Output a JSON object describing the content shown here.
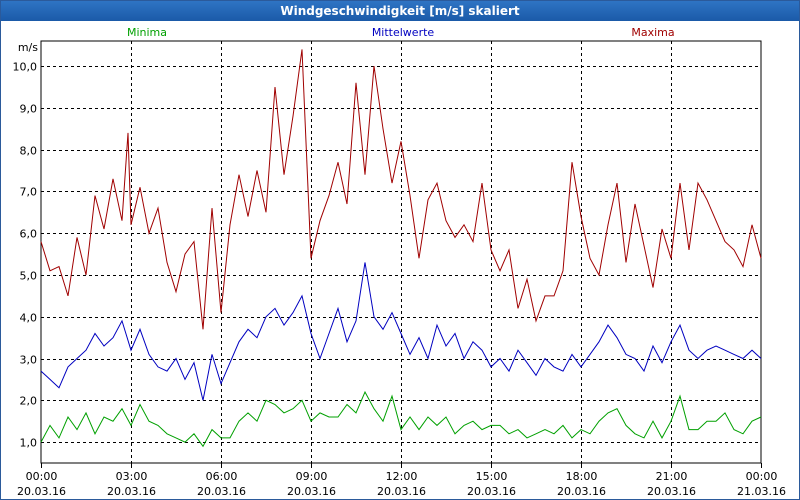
{
  "window": {
    "title": "Windgeschwindigkeit [m/s] skaliert"
  },
  "colors": {
    "frame": "#2b5a9b",
    "title_bg": "#1f5fae",
    "grid": "#000000",
    "min": "#00a000",
    "mean": "#0000c0",
    "max": "#a00000"
  },
  "chart_data": {
    "type": "line",
    "title": "Windgeschwindigkeit [m/s] skaliert",
    "ylabel": "m/s",
    "ylim": [
      0.5,
      10.6
    ],
    "yticks": [
      1.0,
      2.0,
      3.0,
      4.0,
      5.0,
      6.0,
      7.0,
      8.0,
      9.0,
      10.0
    ],
    "ytick_labels": [
      "1,0",
      "2,0",
      "3,0",
      "4,0",
      "5,0",
      "6,0",
      "7,0",
      "8,0",
      "9,0",
      "10,0"
    ],
    "xlim": [
      0,
      24
    ],
    "xticks": [
      0,
      3,
      6,
      9,
      12,
      15,
      18,
      21,
      24
    ],
    "xtick_labels": [
      [
        "00:00",
        "20.03.16"
      ],
      [
        "03:00",
        "20.03.16"
      ],
      [
        "06:00",
        "20.03.16"
      ],
      [
        "09:00",
        "20.03.16"
      ],
      [
        "12:00",
        "20.03.16"
      ],
      [
        "15:00",
        "20.03.16"
      ],
      [
        "18:00",
        "20.03.16"
      ],
      [
        "21:00",
        "20.03.16"
      ],
      [
        "00:00",
        "21.03.16"
      ]
    ],
    "grid": true,
    "legend_position": "top",
    "series": [
      {
        "name": "Minima",
        "color": "#00a000",
        "points": [
          [
            0.0,
            1.0
          ],
          [
            0.3,
            1.4
          ],
          [
            0.6,
            1.1
          ],
          [
            0.9,
            1.6
          ],
          [
            1.2,
            1.3
          ],
          [
            1.5,
            1.7
          ],
          [
            1.8,
            1.2
          ],
          [
            2.1,
            1.6
          ],
          [
            2.4,
            1.5
          ],
          [
            2.7,
            1.8
          ],
          [
            3.0,
            1.4
          ],
          [
            3.3,
            1.9
          ],
          [
            3.6,
            1.5
          ],
          [
            3.9,
            1.4
          ],
          [
            4.2,
            1.2
          ],
          [
            4.5,
            1.1
          ],
          [
            4.8,
            1.0
          ],
          [
            5.1,
            1.2
          ],
          [
            5.4,
            0.9
          ],
          [
            5.7,
            1.3
          ],
          [
            6.0,
            1.1
          ],
          [
            6.3,
            1.1
          ],
          [
            6.6,
            1.5
          ],
          [
            6.9,
            1.7
          ],
          [
            7.2,
            1.5
          ],
          [
            7.5,
            2.0
          ],
          [
            7.8,
            1.9
          ],
          [
            8.1,
            1.7
          ],
          [
            8.4,
            1.8
          ],
          [
            8.7,
            2.0
          ],
          [
            9.0,
            1.5
          ],
          [
            9.3,
            1.7
          ],
          [
            9.6,
            1.6
          ],
          [
            9.9,
            1.6
          ],
          [
            10.2,
            1.9
          ],
          [
            10.5,
            1.7
          ],
          [
            10.8,
            2.2
          ],
          [
            11.1,
            1.8
          ],
          [
            11.4,
            1.5
          ],
          [
            11.7,
            2.1
          ],
          [
            12.0,
            1.3
          ],
          [
            12.3,
            1.6
          ],
          [
            12.6,
            1.3
          ],
          [
            12.9,
            1.6
          ],
          [
            13.2,
            1.4
          ],
          [
            13.5,
            1.6
          ],
          [
            13.8,
            1.2
          ],
          [
            14.1,
            1.4
          ],
          [
            14.4,
            1.5
          ],
          [
            14.7,
            1.3
          ],
          [
            15.0,
            1.4
          ],
          [
            15.3,
            1.4
          ],
          [
            15.6,
            1.2
          ],
          [
            15.9,
            1.3
          ],
          [
            16.2,
            1.1
          ],
          [
            16.5,
            1.2
          ],
          [
            16.8,
            1.3
          ],
          [
            17.1,
            1.2
          ],
          [
            17.4,
            1.4
          ],
          [
            17.7,
            1.1
          ],
          [
            18.0,
            1.3
          ],
          [
            18.3,
            1.2
          ],
          [
            18.6,
            1.5
          ],
          [
            18.9,
            1.7
          ],
          [
            19.2,
            1.8
          ],
          [
            19.5,
            1.4
          ],
          [
            19.8,
            1.2
          ],
          [
            20.1,
            1.1
          ],
          [
            20.4,
            1.5
          ],
          [
            20.7,
            1.1
          ],
          [
            21.0,
            1.5
          ],
          [
            21.3,
            2.1
          ],
          [
            21.6,
            1.3
          ],
          [
            21.9,
            1.3
          ],
          [
            22.2,
            1.5
          ],
          [
            22.5,
            1.5
          ],
          [
            22.8,
            1.7
          ],
          [
            23.1,
            1.3
          ],
          [
            23.4,
            1.2
          ],
          [
            23.7,
            1.5
          ],
          [
            24.0,
            1.6
          ]
        ]
      },
      {
        "name": "Mittelwerte",
        "color": "#0000c0",
        "points": [
          [
            0.0,
            2.7
          ],
          [
            0.3,
            2.5
          ],
          [
            0.6,
            2.3
          ],
          [
            0.9,
            2.8
          ],
          [
            1.2,
            3.0
          ],
          [
            1.5,
            3.2
          ],
          [
            1.8,
            3.6
          ],
          [
            2.1,
            3.3
          ],
          [
            2.4,
            3.5
          ],
          [
            2.7,
            3.9
          ],
          [
            3.0,
            3.2
          ],
          [
            3.3,
            3.7
          ],
          [
            3.6,
            3.1
          ],
          [
            3.9,
            2.8
          ],
          [
            4.2,
            2.7
          ],
          [
            4.5,
            3.0
          ],
          [
            4.8,
            2.5
          ],
          [
            5.1,
            2.9
          ],
          [
            5.4,
            2.0
          ],
          [
            5.7,
            3.1
          ],
          [
            6.0,
            2.4
          ],
          [
            6.3,
            2.9
          ],
          [
            6.6,
            3.4
          ],
          [
            6.9,
            3.7
          ],
          [
            7.2,
            3.5
          ],
          [
            7.5,
            4.0
          ],
          [
            7.8,
            4.2
          ],
          [
            8.1,
            3.8
          ],
          [
            8.4,
            4.1
          ],
          [
            8.7,
            4.5
          ],
          [
            9.0,
            3.6
          ],
          [
            9.3,
            3.0
          ],
          [
            9.6,
            3.6
          ],
          [
            9.9,
            4.2
          ],
          [
            10.2,
            3.4
          ],
          [
            10.5,
            3.9
          ],
          [
            10.8,
            5.3
          ],
          [
            11.1,
            4.0
          ],
          [
            11.4,
            3.7
          ],
          [
            11.7,
            4.1
          ],
          [
            12.0,
            3.6
          ],
          [
            12.3,
            3.1
          ],
          [
            12.6,
            3.5
          ],
          [
            12.9,
            3.0
          ],
          [
            13.2,
            3.8
          ],
          [
            13.5,
            3.3
          ],
          [
            13.8,
            3.6
          ],
          [
            14.1,
            3.0
          ],
          [
            14.4,
            3.4
          ],
          [
            14.7,
            3.2
          ],
          [
            15.0,
            2.8
          ],
          [
            15.3,
            3.0
          ],
          [
            15.6,
            2.7
          ],
          [
            15.9,
            3.2
          ],
          [
            16.2,
            2.9
          ],
          [
            16.5,
            2.6
          ],
          [
            16.8,
            3.0
          ],
          [
            17.1,
            2.8
          ],
          [
            17.4,
            2.7
          ],
          [
            17.7,
            3.1
          ],
          [
            18.0,
            2.8
          ],
          [
            18.3,
            3.1
          ],
          [
            18.6,
            3.4
          ],
          [
            18.9,
            3.8
          ],
          [
            19.2,
            3.5
          ],
          [
            19.5,
            3.1
          ],
          [
            19.8,
            3.0
          ],
          [
            20.1,
            2.7
          ],
          [
            20.4,
            3.3
          ],
          [
            20.7,
            2.9
          ],
          [
            21.0,
            3.4
          ],
          [
            21.3,
            3.8
          ],
          [
            21.6,
            3.2
          ],
          [
            21.9,
            3.0
          ],
          [
            22.2,
            3.2
          ],
          [
            22.5,
            3.3
          ],
          [
            22.8,
            3.2
          ],
          [
            23.1,
            3.1
          ],
          [
            23.4,
            3.0
          ],
          [
            23.7,
            3.2
          ],
          [
            24.0,
            3.0
          ]
        ]
      },
      {
        "name": "Maxima",
        "color": "#a00000",
        "points": [
          [
            0.0,
            5.8
          ],
          [
            0.3,
            5.1
          ],
          [
            0.6,
            5.2
          ],
          [
            0.9,
            4.5
          ],
          [
            1.2,
            5.9
          ],
          [
            1.5,
            5.0
          ],
          [
            1.8,
            6.9
          ],
          [
            2.1,
            6.1
          ],
          [
            2.4,
            7.3
          ],
          [
            2.7,
            6.3
          ],
          [
            2.9,
            8.4
          ],
          [
            3.0,
            6.2
          ],
          [
            3.3,
            7.1
          ],
          [
            3.6,
            6.0
          ],
          [
            3.9,
            6.6
          ],
          [
            4.2,
            5.3
          ],
          [
            4.5,
            4.6
          ],
          [
            4.8,
            5.5
          ],
          [
            5.1,
            5.8
          ],
          [
            5.4,
            3.7
          ],
          [
            5.7,
            6.6
          ],
          [
            6.0,
            4.1
          ],
          [
            6.3,
            6.2
          ],
          [
            6.6,
            7.4
          ],
          [
            6.9,
            6.4
          ],
          [
            7.2,
            7.5
          ],
          [
            7.5,
            6.5
          ],
          [
            7.8,
            9.5
          ],
          [
            8.1,
            7.4
          ],
          [
            8.4,
            8.8
          ],
          [
            8.7,
            10.4
          ],
          [
            9.0,
            5.4
          ],
          [
            9.3,
            6.3
          ],
          [
            9.6,
            6.9
          ],
          [
            9.9,
            7.7
          ],
          [
            10.2,
            6.7
          ],
          [
            10.5,
            9.6
          ],
          [
            10.8,
            7.4
          ],
          [
            11.1,
            10.0
          ],
          [
            11.4,
            8.5
          ],
          [
            11.7,
            7.2
          ],
          [
            12.0,
            8.2
          ],
          [
            12.3,
            6.9
          ],
          [
            12.6,
            5.4
          ],
          [
            12.9,
            6.8
          ],
          [
            13.2,
            7.2
          ],
          [
            13.5,
            6.3
          ],
          [
            13.8,
            5.9
          ],
          [
            14.1,
            6.2
          ],
          [
            14.4,
            5.8
          ],
          [
            14.7,
            7.2
          ],
          [
            15.0,
            5.6
          ],
          [
            15.3,
            5.1
          ],
          [
            15.6,
            5.6
          ],
          [
            15.9,
            4.2
          ],
          [
            16.2,
            4.9
          ],
          [
            16.5,
            3.9
          ],
          [
            16.8,
            4.5
          ],
          [
            17.1,
            4.5
          ],
          [
            17.4,
            5.1
          ],
          [
            17.7,
            7.7
          ],
          [
            18.0,
            6.4
          ],
          [
            18.3,
            5.4
          ],
          [
            18.6,
            5.0
          ],
          [
            18.9,
            6.2
          ],
          [
            19.2,
            7.2
          ],
          [
            19.5,
            5.3
          ],
          [
            19.8,
            6.7
          ],
          [
            20.1,
            5.7
          ],
          [
            20.4,
            4.7
          ],
          [
            20.7,
            6.1
          ],
          [
            21.0,
            5.4
          ],
          [
            21.3,
            7.2
          ],
          [
            21.6,
            5.6
          ],
          [
            21.9,
            7.2
          ],
          [
            22.2,
            6.8
          ],
          [
            22.5,
            6.3
          ],
          [
            22.8,
            5.8
          ],
          [
            23.1,
            5.6
          ],
          [
            23.4,
            5.2
          ],
          [
            23.7,
            6.2
          ],
          [
            24.0,
            5.4
          ]
        ]
      }
    ]
  }
}
